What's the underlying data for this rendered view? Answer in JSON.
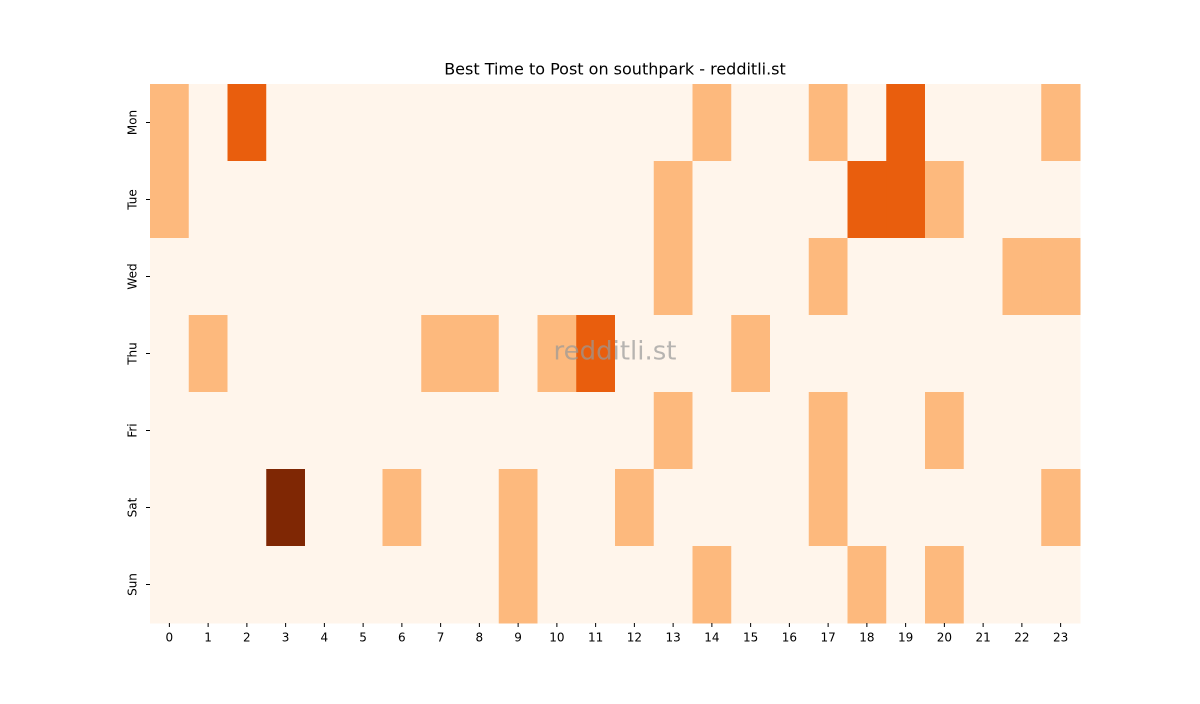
{
  "chart_data": {
    "type": "heatmap",
    "title": "Best Time to Post on southpark - redditli.st",
    "watermark": "redditli.st",
    "x": [
      0,
      1,
      2,
      3,
      4,
      5,
      6,
      7,
      8,
      9,
      10,
      11,
      12,
      13,
      14,
      15,
      16,
      17,
      18,
      19,
      20,
      21,
      22,
      23
    ],
    "y": [
      "Mon",
      "Tue",
      "Wed",
      "Thu",
      "Fri",
      "Sat",
      "Sun"
    ],
    "values": [
      [
        1,
        0,
        2,
        0,
        0,
        0,
        0,
        0,
        0,
        0,
        0,
        0,
        0,
        0,
        1,
        0,
        0,
        1,
        0,
        2,
        0,
        0,
        0,
        1
      ],
      [
        1,
        0,
        0,
        0,
        0,
        0,
        0,
        0,
        0,
        0,
        0,
        0,
        0,
        1,
        0,
        0,
        0,
        0,
        2,
        2,
        1,
        0,
        0,
        0
      ],
      [
        0,
        0,
        0,
        0,
        0,
        0,
        0,
        0,
        0,
        0,
        0,
        0,
        0,
        1,
        0,
        0,
        0,
        1,
        0,
        0,
        0,
        0,
        1,
        1
      ],
      [
        0,
        1,
        0,
        0,
        0,
        0,
        0,
        1,
        1,
        0,
        1,
        2,
        0,
        0,
        0,
        1,
        0,
        0,
        0,
        0,
        0,
        0,
        0,
        0
      ],
      [
        0,
        0,
        0,
        0,
        0,
        0,
        0,
        0,
        0,
        0,
        0,
        0,
        0,
        1,
        0,
        0,
        0,
        1,
        0,
        0,
        1,
        0,
        0,
        0
      ],
      [
        0,
        0,
        0,
        3,
        0,
        0,
        1,
        0,
        0,
        1,
        0,
        0,
        1,
        0,
        0,
        0,
        0,
        1,
        0,
        0,
        0,
        0,
        0,
        1
      ],
      [
        0,
        0,
        0,
        0,
        0,
        0,
        0,
        0,
        0,
        1,
        0,
        0,
        0,
        0,
        1,
        0,
        0,
        0,
        1,
        0,
        1,
        0,
        0,
        0
      ]
    ],
    "color_scale": [
      "#fff5eb",
      "#fdb97d",
      "#e95e0d",
      "#7f2704"
    ]
  }
}
